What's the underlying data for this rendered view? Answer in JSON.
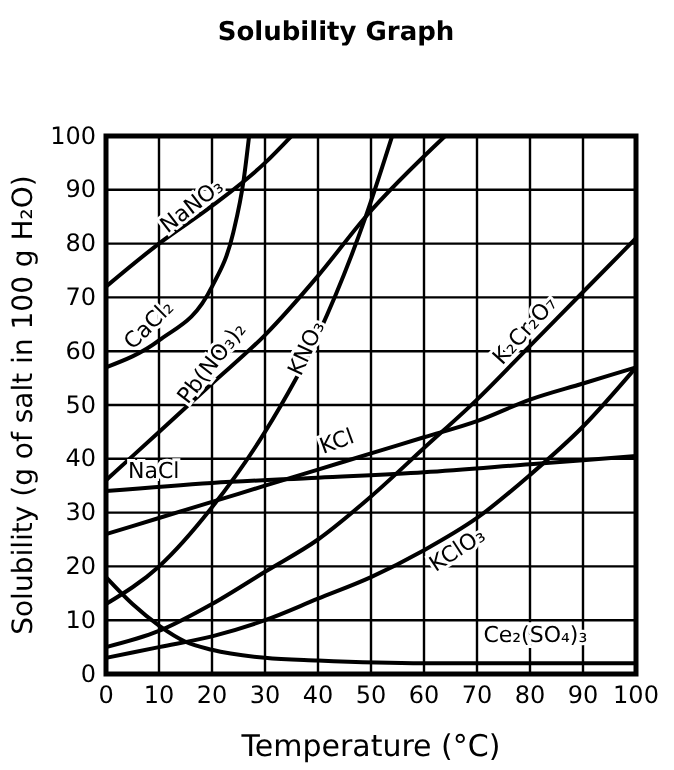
{
  "chart_data": {
    "type": "line",
    "title": "Solubility Graph",
    "xlabel": "Temperature (°C)",
    "ylabel": "Solubility (g of salt in 100 g H₂O)",
    "xlim": [
      0,
      100
    ],
    "ylim": [
      0,
      100
    ],
    "xticks": [
      0,
      10,
      20,
      30,
      40,
      50,
      60,
      70,
      80,
      90,
      100
    ],
    "yticks": [
      0,
      10,
      20,
      30,
      40,
      50,
      60,
      70,
      80,
      90,
      100
    ],
    "grid": true,
    "marker": "none",
    "line_style": "solid",
    "series": [
      {
        "name": "NaNO₃",
        "color": "#000000",
        "x": [
          0,
          10,
          20,
          30,
          35
        ],
        "values": [
          72,
          80,
          87,
          95,
          100
        ]
      },
      {
        "name": "CaCl₂",
        "color": "#000000",
        "x": [
          0,
          10,
          20,
          24,
          26,
          27
        ],
        "values": [
          57,
          62,
          72,
          82,
          92,
          100
        ]
      },
      {
        "name": "Pb(NO₃)₂",
        "color": "#000000",
        "x": [
          0,
          10,
          20,
          30,
          40,
          49,
          64
        ],
        "values": [
          36,
          45,
          54,
          63,
          74,
          85,
          100
        ]
      },
      {
        "name": "KNO₃",
        "color": "#000000",
        "x": [
          0,
          10,
          20,
          30,
          40,
          49,
          54
        ],
        "values": [
          13,
          20,
          31,
          45,
          63,
          85,
          100
        ]
      },
      {
        "name": "K₂Cr₂O₇",
        "color": "#000000",
        "x": [
          0,
          10,
          20,
          30,
          40,
          50,
          60,
          70,
          80,
          90,
          100
        ],
        "values": [
          5,
          8,
          13,
          19,
          25,
          33,
          42,
          51,
          61,
          71,
          81
        ]
      },
      {
        "name": "KCl",
        "color": "#000000",
        "x": [
          0,
          10,
          20,
          30,
          40,
          50,
          60,
          70,
          80,
          90,
          100
        ],
        "values": [
          26,
          29,
          32,
          35,
          38,
          41,
          44,
          47,
          51,
          54,
          57
        ]
      },
      {
        "name": "NaCl",
        "color": "#000000",
        "x": [
          0,
          20,
          40,
          60,
          80,
          100
        ],
        "values": [
          34,
          35.5,
          36.5,
          37.5,
          39,
          40.5
        ]
      },
      {
        "name": "KClO₃",
        "color": "#000000",
        "x": [
          0,
          10,
          20,
          30,
          40,
          50,
          60,
          70,
          80,
          90,
          100
        ],
        "values": [
          3,
          5,
          7,
          10,
          14,
          18,
          23,
          29,
          37,
          46,
          57
        ]
      },
      {
        "name": "Ce₂(SO₄)₃",
        "color": "#000000",
        "x": [
          0,
          5,
          10,
          15,
          20,
          30,
          40,
          60,
          100
        ],
        "values": [
          18,
          13,
          9,
          6,
          4.5,
          3,
          2.5,
          2,
          2
        ]
      }
    ]
  }
}
